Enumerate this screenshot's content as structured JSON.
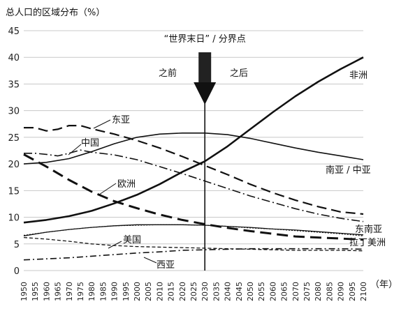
{
  "chart_data": {
    "type": "line",
    "ylabel": "总人口的区域分布（%）",
    "x_unit_label": "（年）",
    "ylim": [
      0,
      45
    ],
    "yticks": [
      0,
      5,
      10,
      15,
      20,
      25,
      30,
      35,
      40,
      45
    ],
    "xlim": [
      1950,
      2100
    ],
    "xticks": [
      1950,
      1955,
      1960,
      1965,
      1970,
      1975,
      1980,
      1985,
      1990,
      1995,
      2000,
      2005,
      2010,
      2015,
      2020,
      2025,
      2030,
      2035,
      2040,
      2045,
      2050,
      2055,
      2060,
      2065,
      2070,
      2075,
      2080,
      2085,
      2090,
      2095,
      2100
    ],
    "grid": "horizontal",
    "annotation": {
      "title": "“世界末日” / 分界点",
      "x": 2030,
      "before": "之前",
      "after": "之后"
    },
    "series": [
      {
        "name": "非洲",
        "style": "solid",
        "width": 2.6,
        "x": [
          1950,
          1960,
          1970,
          1980,
          1990,
          2000,
          2010,
          2020,
          2030,
          2040,
          2050,
          2060,
          2070,
          2080,
          2090,
          2100
        ],
        "y": [
          9,
          9.5,
          10.2,
          11.2,
          12.6,
          14.2,
          16.2,
          18.5,
          20.5,
          23.3,
          26.5,
          29.7,
          32.7,
          35.4,
          37.8,
          40
        ]
      },
      {
        "name": "南亚 / 中亚",
        "style": "solid",
        "width": 1.6,
        "x": [
          1950,
          1960,
          1970,
          1980,
          1990,
          2000,
          2010,
          2020,
          2030,
          2040,
          2050,
          2060,
          2070,
          2080,
          2090,
          2100
        ],
        "y": [
          20,
          20.3,
          21,
          22.3,
          23.8,
          25,
          25.6,
          25.8,
          25.8,
          25.5,
          24.8,
          23.9,
          23,
          22.2,
          21.5,
          20.8
        ]
      },
      {
        "name": "东亚",
        "style": "dashed-long",
        "width": 2.2,
        "x": [
          1950,
          1955,
          1960,
          1965,
          1970,
          1975,
          1980,
          1990,
          2000,
          2010,
          2020,
          2030,
          2040,
          2050,
          2060,
          2070,
          2080,
          2090,
          2100
        ],
        "y": [
          26.8,
          26.8,
          26.2,
          26.5,
          27.2,
          27.2,
          26.6,
          25.6,
          24.4,
          23,
          21.4,
          19.7,
          18,
          16.2,
          14.6,
          13.2,
          12,
          11,
          10.6
        ]
      },
      {
        "name": "欧洲",
        "style": "dashed-bold",
        "width": 3,
        "x": [
          1950,
          1960,
          1970,
          1980,
          1990,
          2000,
          2010,
          2020,
          2030,
          2040,
          2050,
          2060,
          2070,
          2080,
          2090,
          2100
        ],
        "y": [
          21.8,
          19.5,
          17,
          14.8,
          13,
          11.7,
          10.5,
          9.5,
          8.7,
          8,
          7.4,
          6.9,
          6.4,
          6.2,
          6,
          5.8
        ]
      },
      {
        "name": "中国",
        "style": "dashdot",
        "width": 1.6,
        "x": [
          1950,
          1955,
          1960,
          1965,
          1970,
          1975,
          1980,
          1990,
          2000,
          2010,
          2020,
          2030,
          2040,
          2050,
          2060,
          2070,
          2080,
          2090,
          2100
        ],
        "y": [
          22,
          22,
          21.8,
          21.5,
          22,
          22.6,
          22.2,
          21.7,
          20.8,
          19.5,
          18.2,
          16.8,
          15.4,
          14,
          12.8,
          11.6,
          10.6,
          9.8,
          9.2
        ]
      },
      {
        "name": "东南亚",
        "style": "solid-thin",
        "width": 1.3,
        "x": [
          1950,
          1960,
          1970,
          1980,
          1990,
          2000,
          2010,
          2020,
          2030,
          2040,
          2050,
          2060,
          2070,
          2080,
          2090,
          2100
        ],
        "y": [
          6.5,
          7.2,
          7.7,
          8.1,
          8.4,
          8.6,
          8.6,
          8.6,
          8.5,
          8.3,
          8.1,
          7.8,
          7.6,
          7.3,
          7,
          6.7
        ]
      },
      {
        "name": "拉丁美洲",
        "style": "dotted-fine",
        "width": 1.2,
        "x": [
          1950,
          1960,
          1970,
          1980,
          1990,
          2000,
          2010,
          2020,
          2030,
          2040,
          2050,
          2060,
          2070,
          2080,
          2090,
          2100
        ],
        "y": [
          6.6,
          7.2,
          7.7,
          8.1,
          8.4,
          8.5,
          8.6,
          8.6,
          8.5,
          8.3,
          8,
          7.8,
          7.5,
          7.2,
          6.9,
          6.5
        ]
      },
      {
        "name": "美国",
        "style": "dashed-short",
        "width": 1.3,
        "x": [
          1950,
          1960,
          1970,
          1980,
          1990,
          2000,
          2010,
          2020,
          2030,
          2040,
          2050,
          2060,
          2070,
          2080,
          2090,
          2100
        ],
        "y": [
          6.2,
          5.9,
          5.5,
          5,
          4.7,
          4.5,
          4.4,
          4.3,
          4.2,
          4.1,
          4,
          3.9,
          3.8,
          3.8,
          3.8,
          3.7
        ]
      },
      {
        "name": "西亚",
        "style": "dashdot-fine",
        "width": 1.6,
        "x": [
          1950,
          1960,
          1970,
          1980,
          1990,
          2000,
          2010,
          2020,
          2030,
          2040,
          2050,
          2060,
          2070,
          2080,
          2090,
          2100
        ],
        "y": [
          2,
          2.2,
          2.4,
          2.7,
          3,
          3.3,
          3.5,
          3.8,
          3.9,
          4,
          4.1,
          4.1,
          4.1,
          4.1,
          4.1,
          4
        ]
      }
    ]
  }
}
